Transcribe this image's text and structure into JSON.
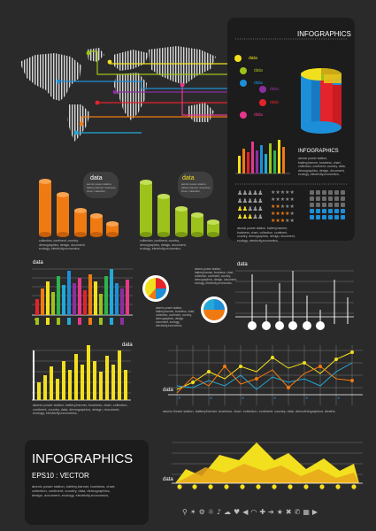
{
  "panel_top": {
    "title": "INFOGRAPHICS",
    "legend_labels": [
      "data",
      "data",
      "data",
      "data",
      "data",
      "data"
    ],
    "subtitle": "INFOGRAPHICS",
    "desc": "atomic power station, battery,banner, business, chart, collection, continent, country, data, demographics, design, document, ecology, electricity,economics,"
  },
  "cyl_block_1": {
    "label": "data",
    "bubble_text": "atomic power station, battery,banner, business, chart, collection,",
    "desc": "collection, continent, country, demographics, design, document, ecology, electricity,economics,"
  },
  "cyl_block_2": {
    "label": "data",
    "bubble_text": "atomic power station, battery,banner, business, chart, collection,",
    "desc": "collection, continent, country, demographics, design, document, ecology, electricity,economics,"
  },
  "people_desc": "atomic power station, battery,banner, business, chart, collection, continent, country, demographics, design, document, ecology, electricity,economics,",
  "bar_chart_1": {
    "label": "data"
  },
  "pie_desc": "atomic power station, battery,banner, business, chart, collection, continent, country, demographics, design, document, ecology, electricity,economics,",
  "pie_desc_2": "atomic power station, battery,banner, business, chart, collection, continent, country, demographics, design, document, ecology, electricity,economics,",
  "lollipop": {
    "label": "data"
  },
  "bar_chart_2": {
    "label": "data",
    "desc": "atomic power station, battery,banner, business, chart, collection, continent, country, data, demographics, design, document, ecology, electricity,economics,"
  },
  "line_chart": {
    "label": "data",
    "desc": "atomic flower station. battery/banner. business. chart. collection. continent. country. data. demo/infographics. deaths."
  },
  "area_chart": {
    "label": "data"
  },
  "bottom_panel": {
    "title": "INFOGRAPHICS",
    "subtitle": "EPS10 : VECTOR",
    "desc": "atomic power station, battery,banner, business, chart, collection, continent, country, data, demographics, design, document, ecology, electricity,economics,"
  },
  "colors": {
    "background": "#2b2a2a",
    "panel": "#1d1c1c",
    "yellow": "#f2df1e",
    "orange": "#f07a12",
    "green": "#9cc21b",
    "blue": "#1d8fd8",
    "red": "#e4232b",
    "purple": "#8b2fa0",
    "pink": "#e5388c",
    "cyan": "#22a9d9"
  }
}
